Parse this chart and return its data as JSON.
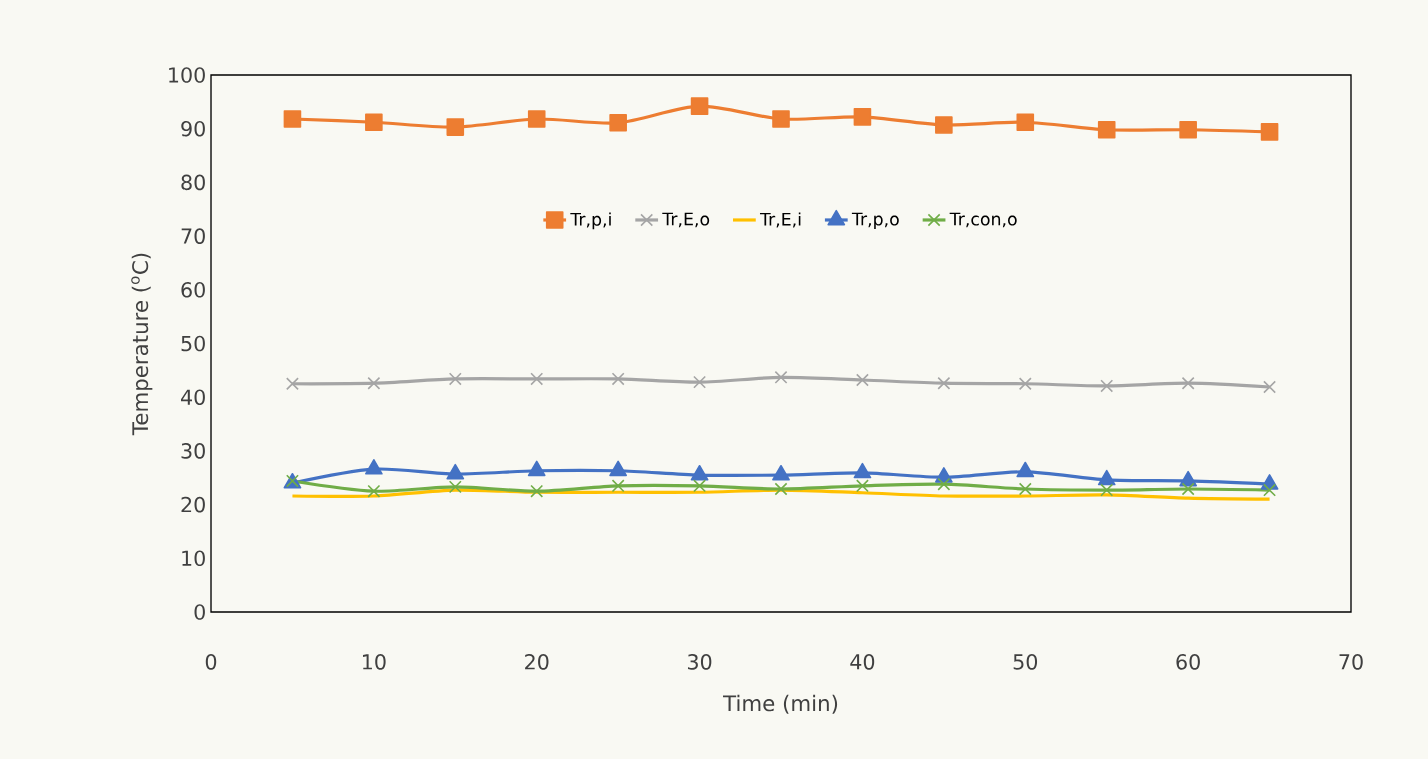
{
  "chart_data": {
    "type": "line",
    "xlabel": "Time (min)",
    "ylabel": "Temperature ($^{o}$C)",
    "x": [
      5,
      10,
      15,
      20,
      25,
      30,
      35,
      40,
      45,
      50,
      55,
      60,
      65
    ],
    "xlim": [
      0,
      70
    ],
    "xticks": [
      0,
      10,
      20,
      30,
      40,
      50,
      60,
      70
    ],
    "ylim": [
      0,
      100
    ],
    "yticks": [
      0,
      10,
      20,
      30,
      40,
      50,
      60,
      70,
      80,
      90,
      100
    ],
    "grid": false,
    "legend": "top",
    "series": [
      {
        "name": "Tr,p,i",
        "color": "#ed7d31",
        "marker": "square",
        "values": [
          91.8,
          91.2,
          90.3,
          91.8,
          91.1,
          94.2,
          91.8,
          92.2,
          90.7,
          91.2,
          89.8,
          89.8,
          89.4
        ]
      },
      {
        "name": "Tr,E,o",
        "color": "#a5a5a5",
        "marker": "cross",
        "values": [
          42.5,
          42.6,
          43.4,
          43.4,
          43.4,
          42.8,
          43.7,
          43.2,
          42.6,
          42.5,
          42.1,
          42.6,
          41.9
        ]
      },
      {
        "name": "Tr,E,i",
        "color": "#ffc000",
        "marker": "none",
        "values": [
          21.6,
          21.6,
          22.7,
          22.3,
          22.3,
          22.3,
          22.7,
          22.2,
          21.6,
          21.6,
          21.8,
          21.2,
          21.0
        ]
      },
      {
        "name": "Tr,p,o",
        "color": "#4472c4",
        "marker": "triangle",
        "values": [
          24.0,
          26.6,
          25.7,
          26.3,
          26.3,
          25.5,
          25.5,
          25.9,
          25.1,
          26.1,
          24.6,
          24.4,
          23.8
        ]
      },
      {
        "name": "Tr,con,o",
        "color": "#70ad47",
        "marker": "cross",
        "values": [
          24.4,
          22.5,
          23.3,
          22.5,
          23.5,
          23.5,
          22.9,
          23.5,
          23.8,
          22.9,
          22.7,
          22.9,
          22.7
        ]
      }
    ]
  }
}
